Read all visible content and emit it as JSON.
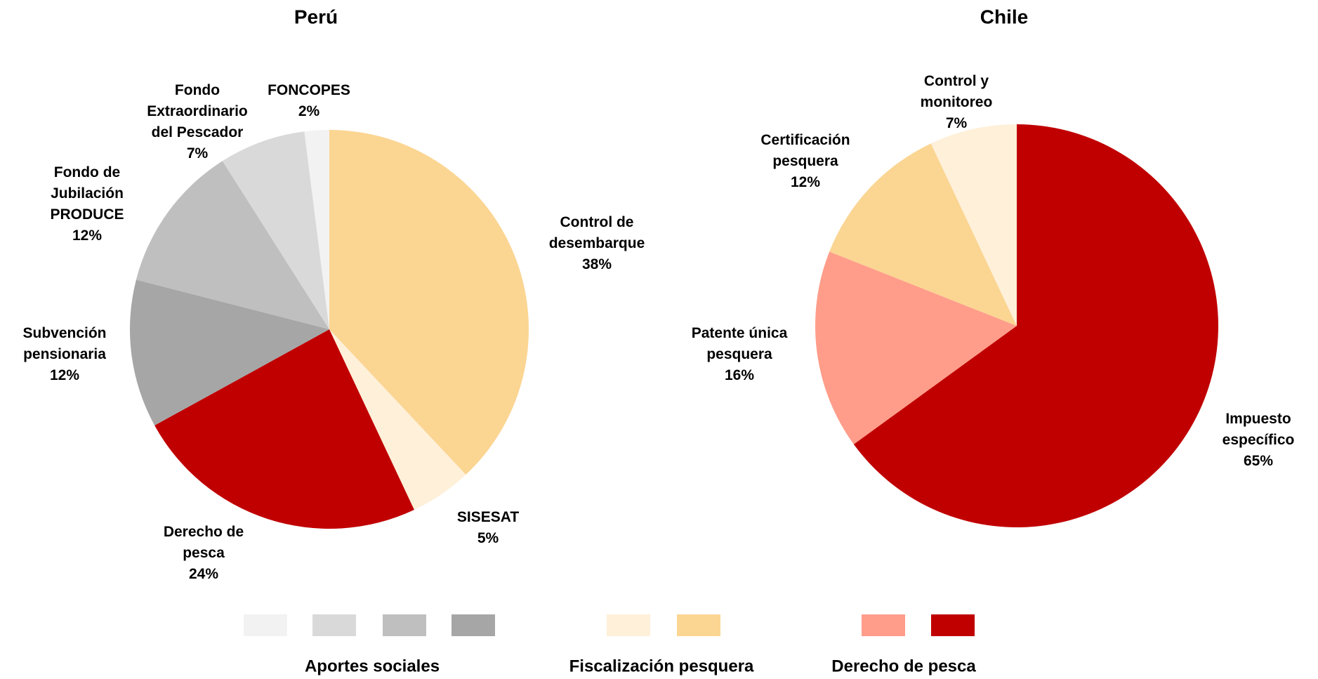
{
  "chart_data": [
    {
      "type": "pie",
      "title": "Perú",
      "categories": [
        "Control de desembarque",
        "SISESAT",
        "Derecho de pesca",
        "Subvención pensionaria",
        "Fondo de Jubilación PRODUCE",
        "Fondo Extraordinario del Pescador",
        "FONCOPES"
      ],
      "values": [
        38,
        5,
        24,
        12,
        12,
        7,
        2
      ],
      "value_labels": [
        "38%",
        "5%",
        "24%",
        "12%",
        "12%",
        "7%",
        "2%"
      ],
      "colors": [
        "#FBD592",
        "#FEF0D9",
        "#C00000",
        "#A6A6A6",
        "#BFBFBF",
        "#D9D9D9",
        "#F2F2F2"
      ]
    },
    {
      "type": "pie",
      "title": "Chile",
      "categories": [
        "Impuesto específico",
        "Patente única pesquera",
        "Certificación pesquera",
        "Control y monitoreo"
      ],
      "values": [
        65,
        16,
        12,
        7
      ],
      "value_labels": [
        "65%",
        "16%",
        "12%",
        "7%"
      ],
      "colors": [
        "#C00000",
        "#FF9D8A",
        "#FBD592",
        "#FEF0D9"
      ]
    }
  ],
  "legend": [
    {
      "name": "Aportes sociales",
      "colors": [
        "#F2F2F2",
        "#D9D9D9",
        "#BFBFBF",
        "#A6A6A6"
      ]
    },
    {
      "name": "Fiscalización pesquera",
      "colors": [
        "#FEF0D9",
        "#FBD592"
      ]
    },
    {
      "name": "Derecho de pesca",
      "colors": [
        "#FF9D8A",
        "#C00000"
      ]
    }
  ]
}
